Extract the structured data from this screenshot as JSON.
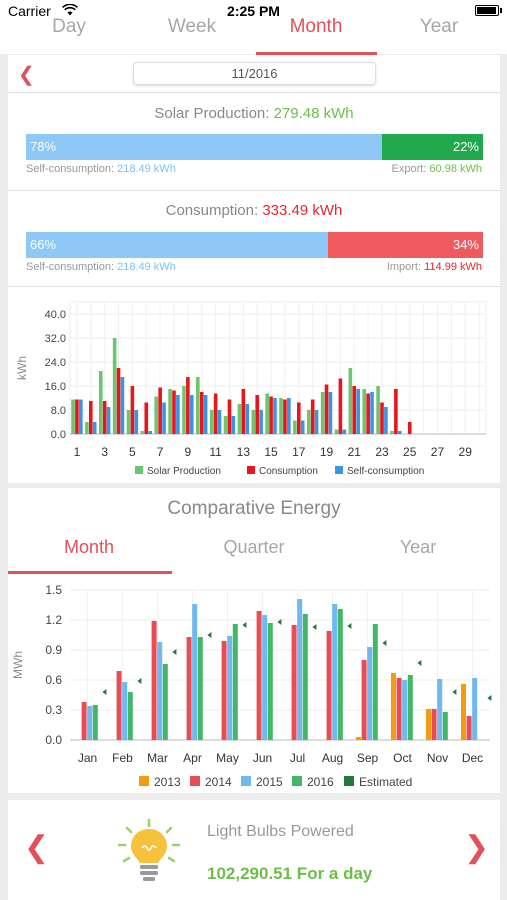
{
  "status_bar": {
    "carrier": "Carrier",
    "time": "2:25 PM"
  },
  "period_tabs": [
    {
      "label": "Day",
      "active": false
    },
    {
      "label": "Week",
      "active": false
    },
    {
      "label": "Month",
      "active": true
    },
    {
      "label": "Year",
      "active": false
    }
  ],
  "date_nav": {
    "prev_icon": "chevron-left-icon",
    "date": "11/2016"
  },
  "solar": {
    "label": "Solar Production: ",
    "value": "279.48 kWh",
    "self_pct": "78%",
    "export_pct": "22%",
    "self_fraction": 0.78,
    "self_label": "Self-consumption: ",
    "self_value": "218.49 kWh",
    "export_label": "Export: ",
    "export_value": "60.98 kWh"
  },
  "consumption": {
    "label": "Consumption: ",
    "value": "333.49 kWh",
    "self_pct": "66%",
    "import_pct": "34%",
    "self_fraction": 0.66,
    "self_label": "Self-consumption: ",
    "self_value": "218.49 kWh",
    "import_label": "Import: ",
    "import_value": "114.99 kWh"
  },
  "colors": {
    "solar": "#6cc56f",
    "consumption": "#e8151b",
    "self": "#3b94e3",
    "light_blue": "#8ec8f6",
    "export_green": "#21a84d",
    "import_red": "#ef5a5f",
    "y2013": "#f39c12",
    "y2014": "#e84c55",
    "y2015": "#6fb8f0",
    "y2016": "#42b768",
    "estimated": "#1f7a3c"
  },
  "comparative": {
    "title": "Comparative Energy",
    "tabs": [
      {
        "label": "Month",
        "active": true
      },
      {
        "label": "Quarter",
        "active": false
      },
      {
        "label": "Year",
        "active": false
      }
    ]
  },
  "bulbs": {
    "icon": "light-bulb-icon",
    "title": "Light Bulbs Powered",
    "value": "102,290.51 For a day",
    "prev_icon": "chevron-left-icon",
    "next_icon": "chevron-right-icon"
  },
  "chart_data": [
    {
      "type": "bar",
      "ylabel": "kWh",
      "ylim": [
        0,
        44
      ],
      "yticks": [
        "0.0",
        "8.0",
        "16.0",
        "24.0",
        "32.0",
        "40.0"
      ],
      "ytick_values": [
        0,
        8,
        16,
        24,
        32,
        40
      ],
      "x": [
        1,
        2,
        3,
        4,
        5,
        6,
        7,
        8,
        9,
        10,
        11,
        12,
        13,
        14,
        15,
        16,
        17,
        18,
        19,
        20,
        21,
        22,
        23,
        24,
        25,
        26,
        27,
        28,
        29,
        30
      ],
      "xtick_labels": [
        "1",
        "3",
        "5",
        "7",
        "9",
        "11",
        "13",
        "15",
        "17",
        "19",
        "21",
        "23",
        "25",
        "27",
        "29"
      ],
      "legend": [
        "Solar Production",
        "Consumption",
        "Self-consumption"
      ],
      "legend_position": "bottom",
      "grid": true,
      "series": [
        {
          "name": "Solar Production",
          "values": [
            11.5,
            4,
            21,
            32,
            8,
            1,
            12.5,
            15,
            16,
            19,
            8,
            6,
            10,
            8,
            13.5,
            12,
            4.5,
            8,
            14,
            1.5,
            22,
            15,
            16,
            1,
            0,
            0,
            0,
            0,
            0,
            0
          ]
        },
        {
          "name": "Consumption",
          "values": [
            11.5,
            11,
            11,
            22,
            16,
            10.5,
            15.5,
            14.5,
            19,
            14,
            13.5,
            11.5,
            15,
            13,
            12.5,
            11.5,
            10.5,
            11.5,
            16.5,
            18.5,
            16,
            13.5,
            10.5,
            15,
            4,
            0,
            0,
            0,
            0,
            0
          ]
        },
        {
          "name": "Self-consumption",
          "values": [
            11.5,
            4,
            9,
            19,
            8,
            1,
            10.5,
            13,
            13,
            13,
            8,
            6,
            10,
            8,
            12,
            12,
            4.5,
            8,
            14,
            1.5,
            15,
            14,
            9,
            1,
            0,
            0,
            0,
            0,
            0,
            0
          ]
        }
      ]
    },
    {
      "type": "bar",
      "ylabel": "MWh",
      "ylim": [
        0,
        1.5
      ],
      "yticks": [
        "0.0",
        "0.3",
        "0.6",
        "0.9",
        "1.2",
        "1.5"
      ],
      "ytick_values": [
        0,
        0.3,
        0.6,
        0.9,
        1.2,
        1.5
      ],
      "categories": [
        "Jan",
        "Feb",
        "Mar",
        "Apr",
        "May",
        "Jun",
        "Jul",
        "Aug",
        "Sep",
        "Oct",
        "Nov",
        "Dec"
      ],
      "legend": [
        "2013",
        "2014",
        "2015",
        "2016",
        "Estimated"
      ],
      "legend_position": "bottom",
      "grid": true,
      "series": [
        {
          "name": "2013",
          "values": [
            0,
            0,
            0,
            0,
            0,
            0,
            0,
            0,
            0.03,
            0.67,
            0.31,
            0.56
          ]
        },
        {
          "name": "2014",
          "values": [
            0.38,
            0.69,
            1.19,
            1.03,
            0.99,
            1.29,
            1.15,
            1.09,
            0.8,
            0.62,
            0.31,
            0.24
          ]
        },
        {
          "name": "2015",
          "values": [
            0.34,
            0.58,
            0.98,
            1.36,
            1.04,
            1.25,
            1.41,
            1.36,
            0.93,
            0.6,
            0.61,
            0.62
          ]
        },
        {
          "name": "2016",
          "values": [
            0.35,
            0.48,
            0.76,
            1.03,
            1.16,
            1.17,
            1.26,
            1.31,
            1.16,
            0.65,
            0.28,
            0
          ]
        },
        {
          "name": "Estimated",
          "values": [
            0.48,
            0.59,
            0.88,
            1.05,
            1.15,
            1.18,
            1.13,
            1.14,
            0.97,
            0.77,
            0.48,
            0.42
          ]
        }
      ]
    }
  ]
}
